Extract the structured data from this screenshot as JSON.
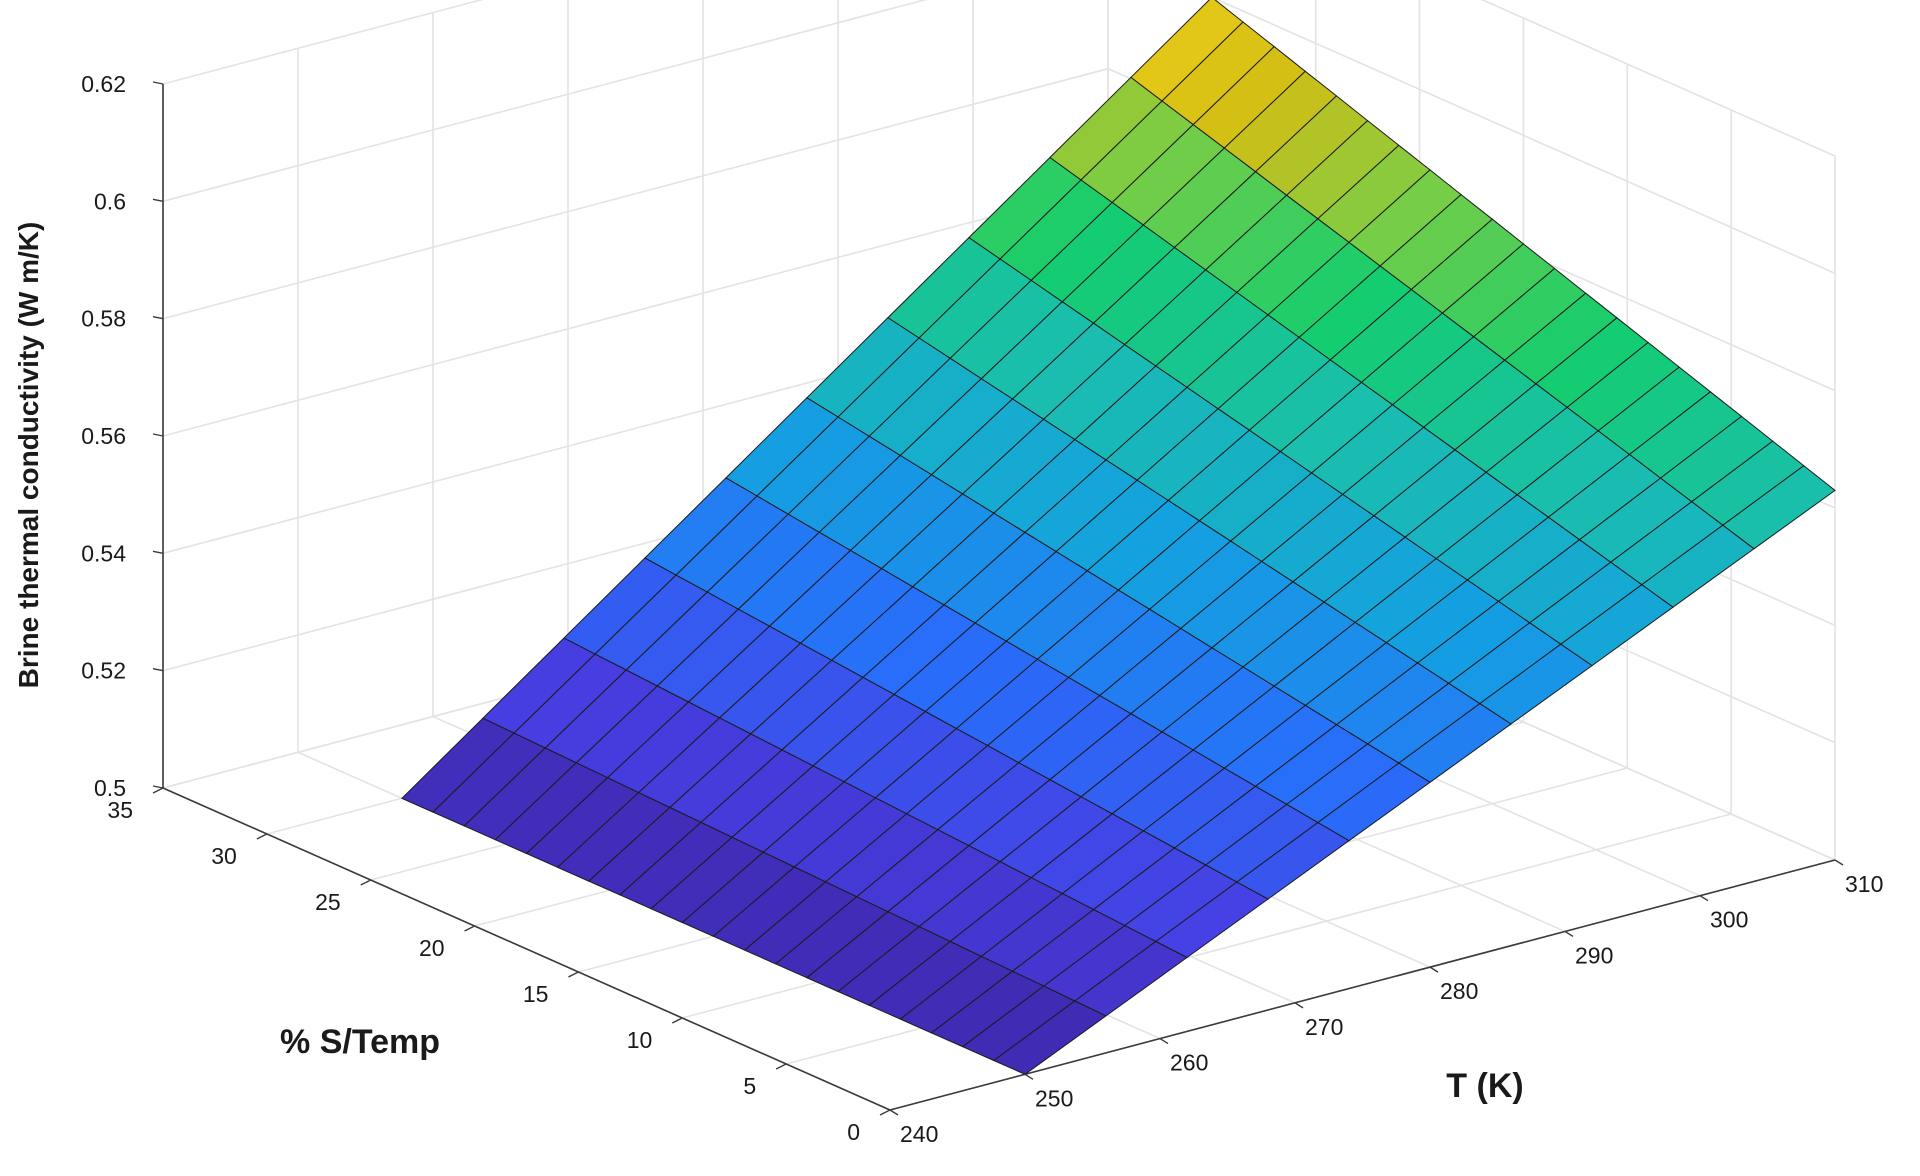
{
  "chart_data": {
    "type": "surface3d",
    "title": "",
    "xlabel": "T (K)",
    "ylabel": "% S/Temp",
    "zlabel": "Brine thermal conductivity (W m/K)",
    "x": {
      "lim": [
        240,
        310
      ],
      "ticks": [
        240,
        250,
        260,
        270,
        280,
        290,
        300,
        310
      ]
    },
    "y": {
      "lim": [
        0,
        35
      ],
      "ticks": [
        0,
        5,
        10,
        15,
        20,
        25,
        30,
        35
      ]
    },
    "z": {
      "lim": [
        0.5,
        0.62
      ],
      "ticks": [
        0.5,
        0.52,
        0.54,
        0.56,
        0.58,
        0.6,
        0.62
      ]
    },
    "grid": true,
    "colormap": "parula",
    "surface": {
      "x_range": [
        250,
        310
      ],
      "y_range": [
        0,
        30
      ],
      "x_steps": 10,
      "y_steps": 20,
      "corners": {
        "T250_S0": 0.5,
        "T250_S30": 0.5,
        "T310_S0": 0.563,
        "T310_S30": 0.6
      }
    }
  }
}
